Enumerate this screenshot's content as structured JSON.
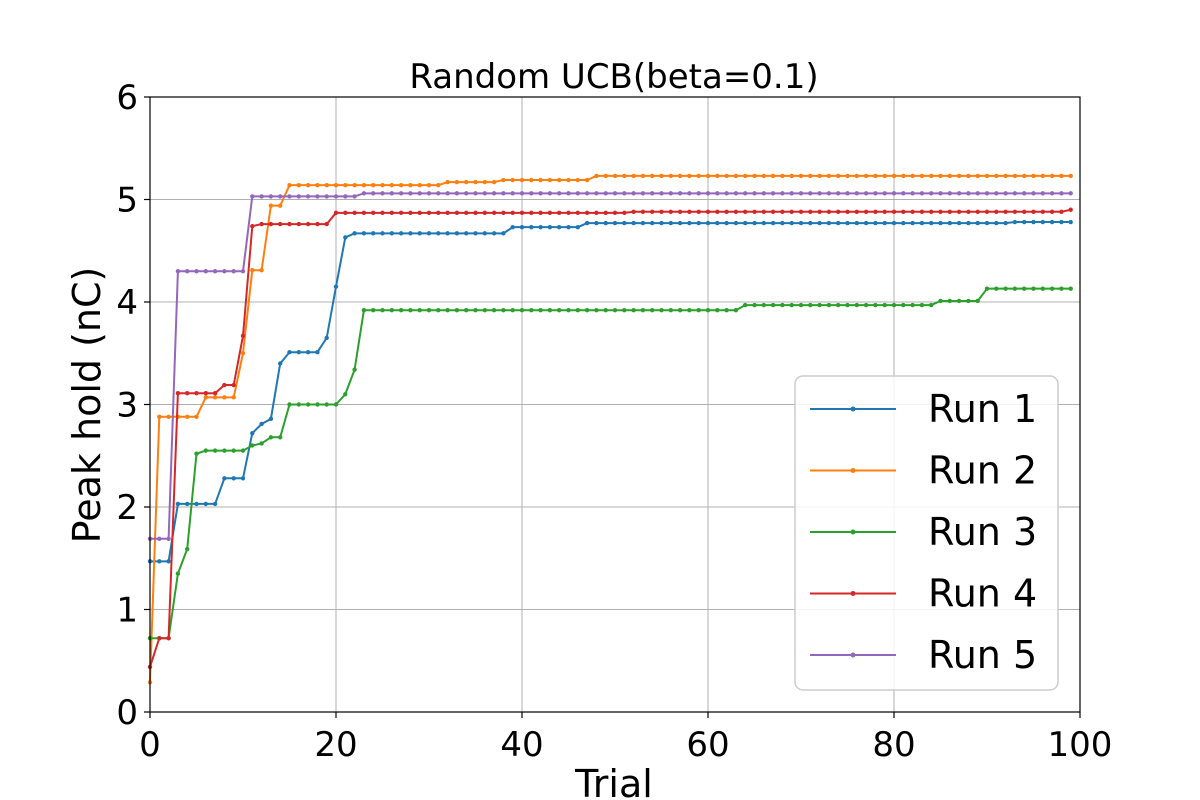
{
  "chart_data": {
    "type": "line",
    "title": "Random UCB(beta=0.1)",
    "xlabel": "Trial",
    "ylabel": "Peak hold (nC)",
    "xlim": [
      0,
      100
    ],
    "ylim": [
      0,
      6
    ],
    "xticks": [
      0,
      20,
      40,
      60,
      80,
      100
    ],
    "yticks": [
      0,
      1,
      2,
      3,
      4,
      5,
      6
    ],
    "grid": true,
    "legend_position": "lower-right",
    "series": [
      {
        "name": "Run 1",
        "color": "#1f77b4",
        "values": [
          1.47,
          1.47,
          1.47,
          2.03,
          2.03,
          2.03,
          2.03,
          2.03,
          2.28,
          2.28,
          2.28,
          2.72,
          2.81,
          2.86,
          3.4,
          3.51,
          3.51,
          3.51,
          3.51,
          3.65,
          4.15,
          4.63,
          4.67,
          4.67,
          4.67,
          4.67,
          4.67,
          4.67,
          4.67,
          4.67,
          4.67,
          4.67,
          4.67,
          4.67,
          4.67,
          4.67,
          4.67,
          4.67,
          4.67,
          4.73,
          4.73,
          4.73,
          4.73,
          4.73,
          4.73,
          4.73,
          4.73,
          4.77,
          4.77,
          4.77,
          4.77,
          4.77,
          4.77,
          4.77,
          4.77,
          4.77,
          4.77,
          4.77,
          4.77,
          4.77,
          4.77,
          4.77,
          4.77,
          4.77,
          4.77,
          4.77,
          4.77,
          4.77,
          4.77,
          4.77,
          4.77,
          4.77,
          4.77,
          4.77,
          4.77,
          4.77,
          4.77,
          4.77,
          4.77,
          4.77,
          4.77,
          4.77,
          4.77,
          4.77,
          4.77,
          4.77,
          4.77,
          4.77,
          4.77,
          4.77,
          4.77,
          4.77,
          4.77,
          4.78,
          4.78,
          4.78,
          4.78,
          4.78,
          4.78,
          4.78
        ]
      },
      {
        "name": "Run 2",
        "color": "#ff7f0e",
        "values": [
          0.29,
          2.88,
          2.88,
          2.88,
          2.88,
          2.88,
          3.07,
          3.07,
          3.07,
          3.07,
          3.5,
          4.31,
          4.31,
          4.94,
          4.94,
          5.14,
          5.14,
          5.14,
          5.14,
          5.14,
          5.14,
          5.14,
          5.14,
          5.14,
          5.14,
          5.14,
          5.14,
          5.14,
          5.14,
          5.14,
          5.14,
          5.14,
          5.17,
          5.17,
          5.17,
          5.17,
          5.17,
          5.17,
          5.19,
          5.19,
          5.19,
          5.19,
          5.19,
          5.19,
          5.19,
          5.19,
          5.19,
          5.19,
          5.23,
          5.23,
          5.23,
          5.23,
          5.23,
          5.23,
          5.23,
          5.23,
          5.23,
          5.23,
          5.23,
          5.23,
          5.23,
          5.23,
          5.23,
          5.23,
          5.23,
          5.23,
          5.23,
          5.23,
          5.23,
          5.23,
          5.23,
          5.23,
          5.23,
          5.23,
          5.23,
          5.23,
          5.23,
          5.23,
          5.23,
          5.23,
          5.23,
          5.23,
          5.23,
          5.23,
          5.23,
          5.23,
          5.23,
          5.23,
          5.23,
          5.23,
          5.23,
          5.23,
          5.23,
          5.23,
          5.23,
          5.23,
          5.23,
          5.23,
          5.23,
          5.23
        ]
      },
      {
        "name": "Run 3",
        "color": "#2ca02c",
        "values": [
          0.72,
          0.72,
          0.72,
          1.35,
          1.59,
          2.52,
          2.55,
          2.55,
          2.55,
          2.55,
          2.55,
          2.6,
          2.62,
          2.68,
          2.68,
          3.0,
          3.0,
          3.0,
          3.0,
          3.0,
          3.0,
          3.1,
          3.34,
          3.92,
          3.92,
          3.92,
          3.92,
          3.92,
          3.92,
          3.92,
          3.92,
          3.92,
          3.92,
          3.92,
          3.92,
          3.92,
          3.92,
          3.92,
          3.92,
          3.92,
          3.92,
          3.92,
          3.92,
          3.92,
          3.92,
          3.92,
          3.92,
          3.92,
          3.92,
          3.92,
          3.92,
          3.92,
          3.92,
          3.92,
          3.92,
          3.92,
          3.92,
          3.92,
          3.92,
          3.92,
          3.92,
          3.92,
          3.92,
          3.92,
          3.97,
          3.97,
          3.97,
          3.97,
          3.97,
          3.97,
          3.97,
          3.97,
          3.97,
          3.97,
          3.97,
          3.97,
          3.97,
          3.97,
          3.97,
          3.97,
          3.97,
          3.97,
          3.97,
          3.97,
          3.97,
          4.01,
          4.01,
          4.01,
          4.01,
          4.01,
          4.13,
          4.13,
          4.13,
          4.13,
          4.13,
          4.13,
          4.13,
          4.13,
          4.13,
          4.13
        ]
      },
      {
        "name": "Run 4",
        "color": "#d62728",
        "values": [
          0.44,
          0.72,
          0.72,
          3.11,
          3.11,
          3.11,
          3.11,
          3.11,
          3.19,
          3.19,
          3.67,
          4.74,
          4.76,
          4.76,
          4.76,
          4.76,
          4.76,
          4.76,
          4.76,
          4.76,
          4.87,
          4.87,
          4.87,
          4.87,
          4.87,
          4.87,
          4.87,
          4.87,
          4.87,
          4.87,
          4.87,
          4.87,
          4.87,
          4.87,
          4.87,
          4.87,
          4.87,
          4.87,
          4.87,
          4.87,
          4.87,
          4.87,
          4.87,
          4.87,
          4.87,
          4.87,
          4.87,
          4.87,
          4.87,
          4.87,
          4.87,
          4.87,
          4.88,
          4.88,
          4.88,
          4.88,
          4.88,
          4.88,
          4.88,
          4.88,
          4.88,
          4.88,
          4.88,
          4.88,
          4.88,
          4.88,
          4.88,
          4.88,
          4.88,
          4.88,
          4.88,
          4.88,
          4.88,
          4.88,
          4.88,
          4.88,
          4.88,
          4.88,
          4.88,
          4.88,
          4.88,
          4.88,
          4.88,
          4.88,
          4.88,
          4.88,
          4.88,
          4.88,
          4.88,
          4.88,
          4.88,
          4.88,
          4.88,
          4.88,
          4.88,
          4.88,
          4.88,
          4.88,
          4.88,
          4.9
        ]
      },
      {
        "name": "Run 5",
        "color": "#9467bd",
        "values": [
          1.69,
          1.69,
          1.69,
          4.3,
          4.3,
          4.3,
          4.3,
          4.3,
          4.3,
          4.3,
          4.3,
          5.03,
          5.03,
          5.03,
          5.03,
          5.03,
          5.03,
          5.03,
          5.03,
          5.03,
          5.03,
          5.03,
          5.03,
          5.06,
          5.06,
          5.06,
          5.06,
          5.06,
          5.06,
          5.06,
          5.06,
          5.06,
          5.06,
          5.06,
          5.06,
          5.06,
          5.06,
          5.06,
          5.06,
          5.06,
          5.06,
          5.06,
          5.06,
          5.06,
          5.06,
          5.06,
          5.06,
          5.06,
          5.06,
          5.06,
          5.06,
          5.06,
          5.06,
          5.06,
          5.06,
          5.06,
          5.06,
          5.06,
          5.06,
          5.06,
          5.06,
          5.06,
          5.06,
          5.06,
          5.06,
          5.06,
          5.06,
          5.06,
          5.06,
          5.06,
          5.06,
          5.06,
          5.06,
          5.06,
          5.06,
          5.06,
          5.06,
          5.06,
          5.06,
          5.06,
          5.06,
          5.06,
          5.06,
          5.06,
          5.06,
          5.06,
          5.06,
          5.06,
          5.06,
          5.06,
          5.06,
          5.06,
          5.06,
          5.06,
          5.06,
          5.06,
          5.06,
          5.06,
          5.06,
          5.06
        ]
      }
    ]
  }
}
